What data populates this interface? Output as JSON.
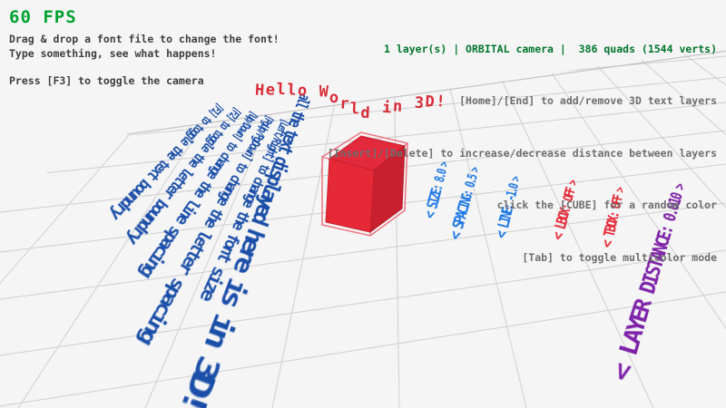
{
  "hud": {
    "fps": "60 FPS",
    "left_hints": [
      "Drag & drop a font file to change the font!",
      "Type something, see what happens!",
      "Press [F3] to toggle the camera"
    ],
    "status": "1 layer(s) | ORBITAL camera |  386 quads (1544 verts)",
    "right_hints": [
      "[Home]/[End] to add/remove 3D text layers",
      "[Insert]/[Delete] to increase/decrease distance between layers",
      "click the [CUBE] for a random color",
      "[Tab] to toggle multicolor mode"
    ]
  },
  "scene": {
    "wave_text": "Hello World in 3D!",
    "floor_title": "all the text displayed here is in 3D!",
    "floor_hints": [
      "[F1] to toggle the text boundry",
      "[F2] to toggle the letter boundry",
      "[Up/Down] to change the line spacing",
      "[PgUp/PgDown] to change the letter spacing",
      "[Left/Right] to change the font size"
    ],
    "labels": [
      {
        "text": "< SIZE: 8.0 >",
        "color": "#1E78E6"
      },
      {
        "text": "< SPACING: 0.5 >",
        "color": "#1E78E6"
      },
      {
        "text": "< LINE: -1.0 >",
        "color": "#1E78E6"
      },
      {
        "text": "< LBOX: OFF >",
        "color": "#E62937"
      },
      {
        "text": "< TBOX: OFF >",
        "color": "#E62937"
      },
      {
        "text": "< LAYER DISTANCE: 0.010 >",
        "color": "#7E22A8"
      }
    ],
    "colors": {
      "cube_fill": "#E62937",
      "cube_top": "#E3293C",
      "cube_side": "#C9202F",
      "cube_wire": "#EC7580",
      "grid_line": "#CFCFCF",
      "hint_blue": "#1A4EA8",
      "wave_red": "#D82B36",
      "background": "#F5F5F5"
    }
  }
}
